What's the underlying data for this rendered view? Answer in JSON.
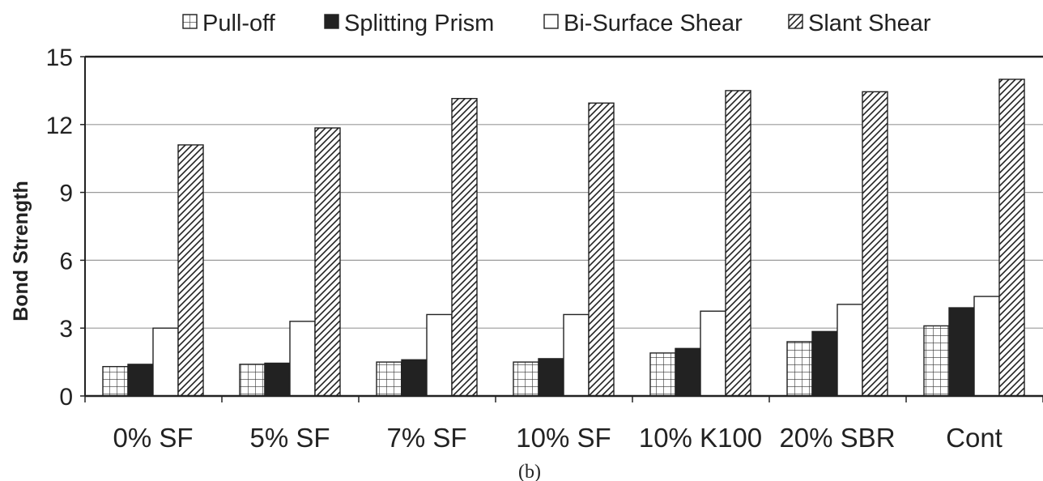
{
  "chart_data": {
    "type": "bar",
    "title": "",
    "xlabel": "",
    "ylabel": "Bond Strength",
    "caption": "(b)",
    "ylim": [
      0,
      15
    ],
    "yticks": [
      "0",
      "3",
      "6",
      "9",
      "12",
      "15"
    ],
    "grid": true,
    "legend_position": "top",
    "categories": [
      "0% SF",
      "5% SF",
      "7% SF",
      "10% SF",
      "10% K100",
      "20% SBR",
      "Cont"
    ],
    "series": [
      {
        "name": "Pull-off",
        "pattern": "grid",
        "color": "#ffffff",
        "values": [
          1.3,
          1.4,
          1.5,
          1.5,
          1.9,
          2.4,
          3.1
        ]
      },
      {
        "name": "Splitting Prism",
        "pattern": "solid",
        "color": "#222222",
        "values": [
          1.4,
          1.45,
          1.6,
          1.65,
          2.1,
          2.85,
          3.9
        ]
      },
      {
        "name": "Bi-Surface Shear",
        "pattern": "none",
        "color": "#ffffff",
        "values": [
          3.0,
          3.3,
          3.6,
          3.6,
          3.75,
          4.05,
          4.4
        ]
      },
      {
        "name": "Slant Shear",
        "pattern": "hatch",
        "color": "#ffffff",
        "values": [
          11.1,
          11.85,
          13.15,
          12.95,
          13.5,
          13.45,
          14.0
        ]
      }
    ]
  }
}
